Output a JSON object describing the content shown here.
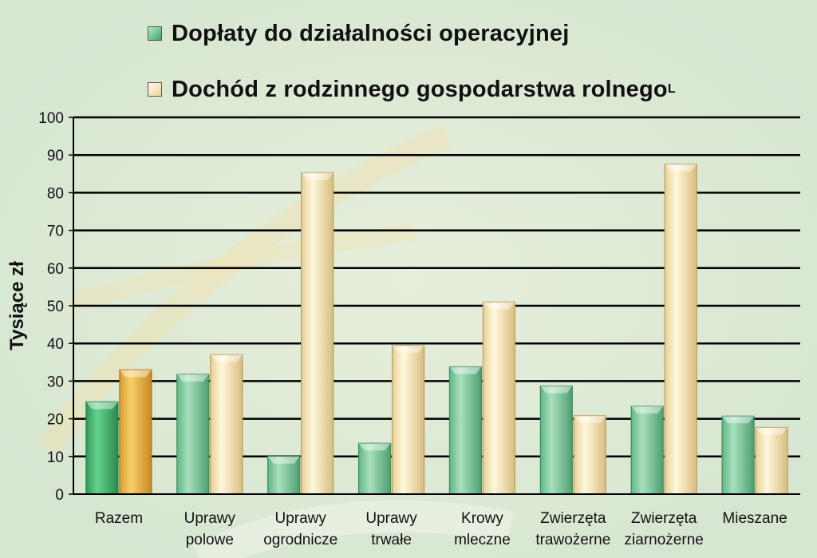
{
  "chart_data": {
    "type": "bar",
    "categories": [
      [
        "Razem"
      ],
      [
        "Uprawy",
        "polowe"
      ],
      [
        "Uprawy",
        "ogrodnicze"
      ],
      [
        "Uprawy",
        "trwałe"
      ],
      [
        "Krowy",
        "mleczne"
      ],
      [
        "Zwierzęta",
        "trawożerne"
      ],
      [
        "Zwierzęta",
        "ziarnożerne"
      ],
      [
        "Mieszane"
      ]
    ],
    "series": [
      {
        "name": "Dopłaty do działalności operacyjnej",
        "values": [
          24.5,
          31.8,
          10,
          13.5,
          33.8,
          28.7,
          23.3,
          20.7
        ],
        "color": "#7ccc98",
        "highlight_color": "#3eb66c"
      },
      {
        "name": "Dochód z rodzinnego gospodarstwa rolnego",
        "name_suffix": "L",
        "values": [
          33,
          37,
          85.3,
          39.4,
          51,
          20.8,
          87.6,
          17.7
        ],
        "color": "#f5e3b0",
        "highlight_color": "#eab648"
      }
    ],
    "highlight_category_index": 0,
    "ylabel": "Tysiące zł",
    "ylim": [
      0,
      100
    ],
    "yticks": [
      0,
      10,
      20,
      30,
      40,
      50,
      60,
      70,
      80,
      90,
      100
    ],
    "grid": true,
    "legend_position": "top"
  }
}
